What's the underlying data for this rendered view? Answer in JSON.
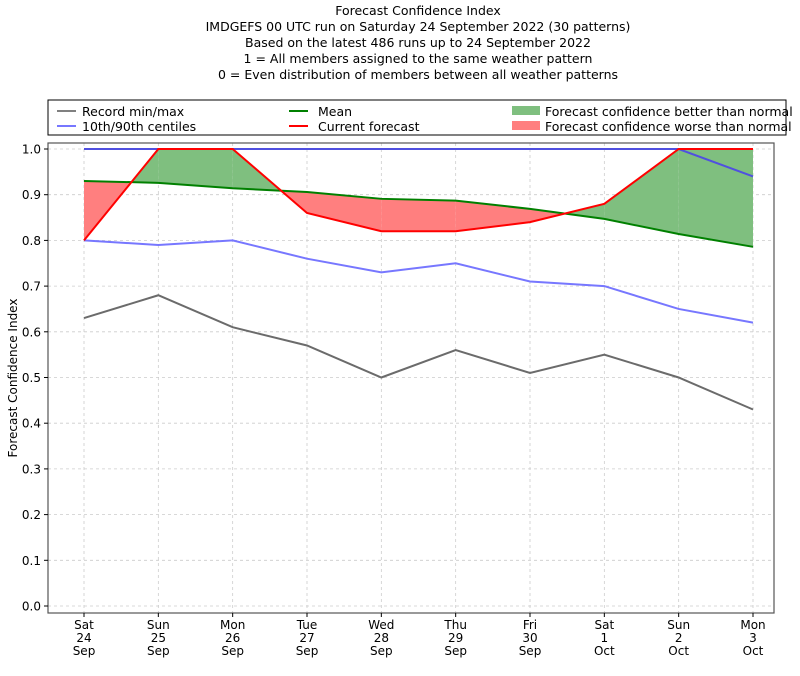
{
  "chart_data": {
    "type": "line",
    "title_lines": [
      "Forecast Confidence Index",
      "IMDGEFS 00 UTC run on Saturday 24 September 2022 (30 patterns)",
      "Based on the latest 486 runs up to 24 September 2022",
      "1 = All members assigned to the same weather pattern",
      "0 = Even distribution of members between all weather patterns"
    ],
    "xlabel": "",
    "ylabel": "Forecast Confidence Index",
    "ylim": [
      0.0,
      1.0
    ],
    "yticks": [
      "0.0",
      "0.1",
      "0.2",
      "0.3",
      "0.4",
      "0.5",
      "0.6",
      "0.7",
      "0.8",
      "0.9",
      "1.0"
    ],
    "grid": true,
    "categories": [
      [
        "Sat",
        "24",
        "Sep"
      ],
      [
        "Sun",
        "25",
        "Sep"
      ],
      [
        "Mon",
        "26",
        "Sep"
      ],
      [
        "Tue",
        "27",
        "Sep"
      ],
      [
        "Wed",
        "28",
        "Sep"
      ],
      [
        "Thu",
        "29",
        "Sep"
      ],
      [
        "Fri",
        "30",
        "Sep"
      ],
      [
        "Sat",
        "1",
        "Oct"
      ],
      [
        "Sun",
        "2",
        "Oct"
      ],
      [
        "Mon",
        "3",
        "Oct"
      ]
    ],
    "series": [
      {
        "name": "Record max",
        "legend_group": "Record min/max",
        "color": "#808080",
        "values": [
          1.0,
          1.0,
          1.0,
          1.0,
          1.0,
          1.0,
          1.0,
          1.0,
          1.0,
          1.0
        ]
      },
      {
        "name": "Record min",
        "legend_group": "Record min/max",
        "color": "#808080",
        "values": [
          0.63,
          0.68,
          0.61,
          0.57,
          0.5,
          0.56,
          0.51,
          0.55,
          0.5,
          0.43
        ]
      },
      {
        "name": "90th centile",
        "legend_group": "10th/90th centiles",
        "color": "#7777ff",
        "values": [
          1.0,
          1.0,
          1.0,
          1.0,
          1.0,
          1.0,
          1.0,
          1.0,
          1.0,
          0.94
        ]
      },
      {
        "name": "10th centile",
        "legend_group": "10th/90th centiles",
        "color": "#7777ff",
        "values": [
          0.8,
          0.79,
          0.8,
          0.76,
          0.73,
          0.75,
          0.71,
          0.7,
          0.65,
          0.62
        ]
      },
      {
        "name": "Mean",
        "color": "#008000",
        "values": [
          0.93,
          0.926,
          0.914,
          0.906,
          0.891,
          0.887,
          0.869,
          0.847,
          0.814,
          0.786
        ]
      },
      {
        "name": "Current forecast",
        "color": "#ff0000",
        "values": [
          0.8,
          1.0,
          1.0,
          0.86,
          0.82,
          0.82,
          0.84,
          0.88,
          1.0,
          1.0
        ]
      }
    ],
    "fills": [
      {
        "name": "Forecast confidence better than normal",
        "color": "#7fbf7f",
        "condition": "current > mean"
      },
      {
        "name": "Forecast confidence worse than normal",
        "color": "#ff7f7f",
        "condition": "current < mean"
      }
    ],
    "legend": {
      "placement": "top (above plot, 3 columns)",
      "entries": [
        {
          "label": "Record min/max",
          "kind": "line",
          "color": "#808080"
        },
        {
          "label": "10th/90th centiles",
          "kind": "line",
          "color": "#7777ff"
        },
        {
          "label": "Mean",
          "kind": "line",
          "color": "#008000"
        },
        {
          "label": "Current forecast",
          "kind": "line",
          "color": "#ff0000"
        },
        {
          "label": "Forecast confidence better than normal",
          "kind": "patch",
          "color": "#7fbf7f"
        },
        {
          "label": "Forecast confidence worse than normal",
          "kind": "patch",
          "color": "#ff7f7f"
        }
      ]
    }
  }
}
